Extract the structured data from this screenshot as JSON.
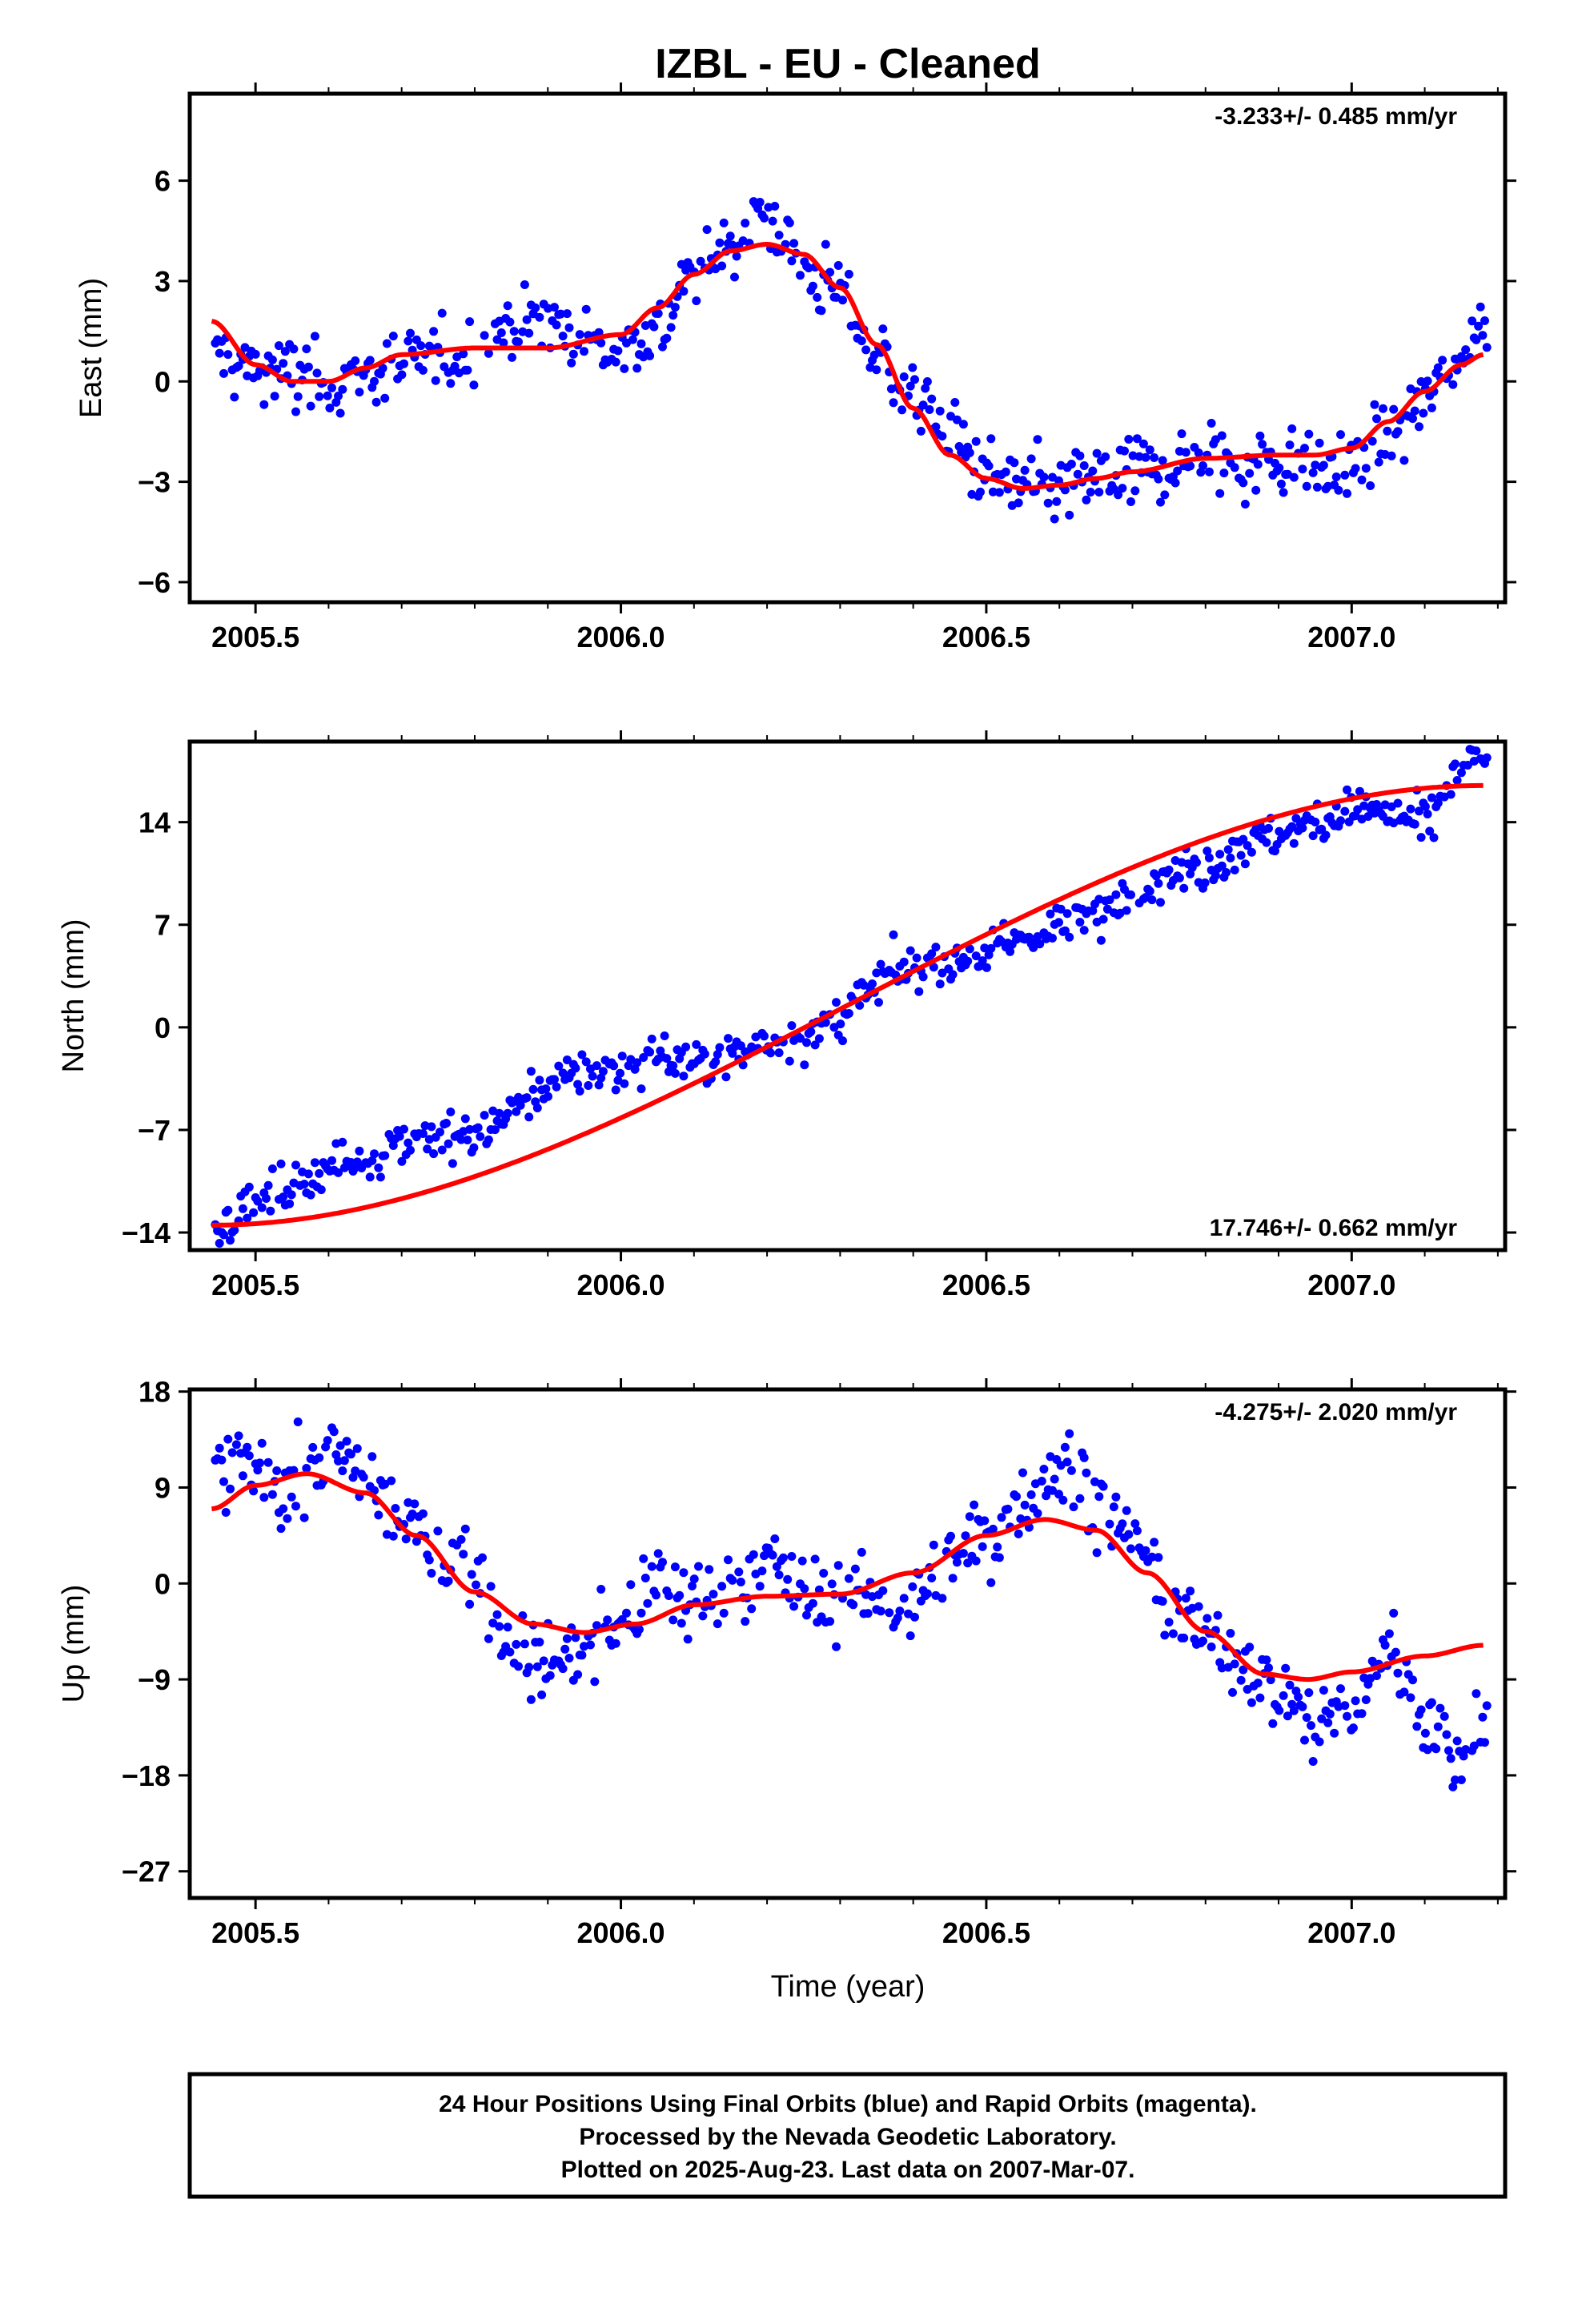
{
  "title": "IZBL  - EU - Cleaned",
  "xlabel": "Time (year)",
  "footer": [
    "24 Hour Positions Using Final Orbits (blue) and Rapid Orbits (magenta).",
    "Processed by the Nevada Geodetic Laboratory.",
    "Plotted on 2025-Aug-23. Last data on 2007-Mar-07."
  ],
  "colors": {
    "final_orbit_points": "#0000ff",
    "fit_line": "#ff0000",
    "frame": "#000000"
  },
  "chart_data": [
    {
      "type": "scatter",
      "ylabel": "East (mm)",
      "rate_text": "-3.233+/- 0.485 mm/yr",
      "rate_position": "top-right",
      "xlim": [
        2005.41,
        2007.21
      ],
      "ylim": [
        -6.6,
        8.6
      ],
      "xticks": [
        "2005.5",
        "2006.0",
        "2006.5",
        "2007.0"
      ],
      "yticks": [
        "6",
        "3",
        "0",
        "−3",
        "−6"
      ],
      "series": [
        {
          "kind": "points",
          "x": [
            2005.45,
            2005.5,
            2005.55,
            2005.6,
            2005.65,
            2005.7,
            2005.75,
            2005.8,
            2005.85,
            2005.9,
            2005.95,
            2006.0,
            2006.05,
            2006.1,
            2006.15,
            2006.2,
            2006.25,
            2006.3,
            2006.35,
            2006.4,
            2006.45,
            2006.5,
            2006.55,
            2006.6,
            2006.65,
            2006.7,
            2006.75,
            2006.8,
            2006.85,
            2006.9,
            2006.95,
            2007.0,
            2007.05,
            2007.1,
            2007.15,
            2007.18
          ],
          "y": [
            0.8,
            0.4,
            0.2,
            0.0,
            0.2,
            0.4,
            0.7,
            0.9,
            1.7,
            1.8,
            1.2,
            0.9,
            1.7,
            3.0,
            4.2,
            5.0,
            3.4,
            2.6,
            0.8,
            -0.4,
            -1.6,
            -2.7,
            -3.3,
            -3.2,
            -2.9,
            -2.7,
            -2.5,
            -2.3,
            -2.5,
            -2.4,
            -2.6,
            -2.6,
            -1.6,
            -0.6,
            0.8,
            1.8
          ]
        },
        {
          "kind": "fit",
          "x": [
            2005.44,
            2005.5,
            2005.55,
            2005.6,
            2005.65,
            2005.7,
            2005.8,
            2005.9,
            2006.0,
            2006.05,
            2006.1,
            2006.15,
            2006.2,
            2006.25,
            2006.3,
            2006.35,
            2006.4,
            2006.45,
            2006.5,
            2006.55,
            2006.6,
            2006.65,
            2006.7,
            2006.8,
            2006.9,
            2006.95,
            2007.0,
            2007.05,
            2007.1,
            2007.15,
            2007.18
          ],
          "y": [
            1.8,
            0.5,
            0.0,
            0.0,
            0.4,
            0.8,
            1.0,
            1.0,
            1.4,
            2.2,
            3.2,
            3.9,
            4.1,
            3.8,
            2.8,
            1.1,
            -0.8,
            -2.2,
            -2.9,
            -3.2,
            -3.1,
            -2.9,
            -2.7,
            -2.3,
            -2.2,
            -2.2,
            -2.0,
            -1.2,
            -0.3,
            0.5,
            0.8
          ]
        }
      ]
    },
    {
      "type": "scatter",
      "ylabel": "North (mm)",
      "rate_text": "17.746+/- 0.662 mm/yr",
      "rate_position": "bottom-right",
      "xlim": [
        2005.41,
        2007.21
      ],
      "ylim": [
        -15.2,
        19.5
      ],
      "xticks": [
        "2005.5",
        "2006.0",
        "2006.5",
        "2007.0"
      ],
      "yticks": [
        "14",
        "7",
        "0",
        "−7",
        "−14"
      ],
      "series": [
        {
          "kind": "points",
          "x": [
            2005.45,
            2005.5,
            2005.55,
            2005.6,
            2005.65,
            2005.7,
            2005.75,
            2005.8,
            2005.85,
            2005.9,
            2005.95,
            2006.0,
            2006.05,
            2006.1,
            2006.15,
            2006.2,
            2006.25,
            2006.4,
            2006.45,
            2006.5,
            2006.55,
            2006.6,
            2006.65,
            2006.7,
            2006.75,
            2006.8,
            2006.85,
            2006.9,
            2006.95,
            2007.0,
            2007.05,
            2007.1,
            2007.15,
            2007.18
          ],
          "y": [
            -13.5,
            -12.0,
            -11.0,
            -9.5,
            -9.0,
            -7.5,
            -7.5,
            -7.5,
            -5.5,
            -4.0,
            -3.0,
            -3.0,
            -2.0,
            -2.5,
            -2.0,
            -1.0,
            -0.5,
            4.0,
            4.5,
            5.0,
            6.0,
            7.0,
            7.5,
            9.5,
            10.5,
            11.0,
            12.5,
            13.0,
            14.0,
            15.0,
            14.5,
            14.0,
            17.5,
            18.5
          ]
        },
        {
          "kind": "fit",
          "x": [
            2005.44,
            2007.18
          ],
          "y": [
            -13.5,
            16.5
          ]
        }
      ]
    },
    {
      "type": "scatter",
      "ylabel": "Up (mm)",
      "rate_text": "-4.275+/- 2.020 mm/yr",
      "rate_position": "top-right",
      "xlim": [
        2005.41,
        2007.21
      ],
      "ylim": [
        -29.5,
        18.2
      ],
      "xticks": [
        "2005.5",
        "2006.0",
        "2006.5",
        "2007.0"
      ],
      "yticks": [
        "18",
        "9",
        "0",
        "−9",
        "−18",
        "−27"
      ],
      "series": [
        {
          "kind": "points",
          "x": [
            2005.45,
            2005.5,
            2005.55,
            2005.6,
            2005.65,
            2005.7,
            2005.75,
            2005.8,
            2005.85,
            2005.9,
            2005.95,
            2006.0,
            2006.05,
            2006.1,
            2006.15,
            2006.2,
            2006.25,
            2006.4,
            2006.45,
            2006.5,
            2006.55,
            2006.6,
            2006.65,
            2006.7,
            2006.75,
            2006.8,
            2006.85,
            2006.9,
            2006.95,
            2007.0,
            2007.05,
            2007.1,
            2007.15,
            2007.18
          ],
          "y": [
            10.5,
            11.0,
            9.0,
            12.0,
            10.0,
            6.0,
            3.0,
            1.0,
            -5.0,
            -8.0,
            -6.0,
            -4.0,
            0.0,
            -2.0,
            0.0,
            2.0,
            -1.0,
            -2.0,
            2.0,
            4.0,
            8.0,
            11.0,
            8.0,
            4.0,
            -2.0,
            -5.0,
            -7.0,
            -10.0,
            -13.0,
            -12.0,
            -6.0,
            -12.0,
            -17.0,
            -12.0
          ]
        },
        {
          "kind": "fit",
          "x": [
            2005.44,
            2005.5,
            2005.57,
            2005.65,
            2005.72,
            2005.8,
            2005.88,
            2005.95,
            2006.02,
            2006.1,
            2006.2,
            2006.3,
            2006.4,
            2006.5,
            2006.58,
            2006.65,
            2006.72,
            2006.8,
            2006.88,
            2006.94,
            2007.0,
            2007.1,
            2007.18
          ],
          "y": [
            7.0,
            9.2,
            10.3,
            8.5,
            4.5,
            -0.8,
            -3.8,
            -4.6,
            -3.8,
            -2.0,
            -1.2,
            -1.0,
            1.0,
            4.5,
            6.0,
            5.0,
            1.0,
            -4.5,
            -8.5,
            -9.0,
            -8.3,
            -6.8,
            -5.8
          ]
        }
      ]
    }
  ]
}
